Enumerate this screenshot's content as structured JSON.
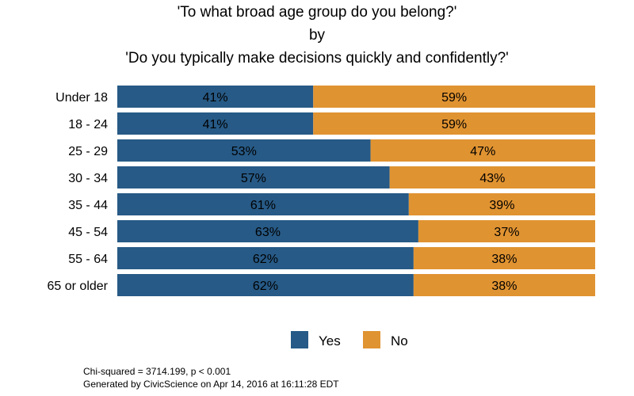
{
  "chart_data": {
    "type": "bar",
    "stacked": true,
    "orientation": "horizontal",
    "title_lines": [
      "'To what broad age group do you belong?'",
      "by",
      "'Do you typically make decisions quickly and confidently?'"
    ],
    "categories": [
      "Under 18",
      "18 - 24",
      "25 - 29",
      "30 - 34",
      "35 - 44",
      "45 - 54",
      "55 - 64",
      "65 or older"
    ],
    "series": [
      {
        "name": "Yes",
        "color": "#275a86",
        "values": [
          41,
          41,
          53,
          57,
          61,
          63,
          62,
          62
        ]
      },
      {
        "name": "No",
        "color": "#e09331",
        "values": [
          59,
          59,
          47,
          43,
          39,
          37,
          38,
          38
        ]
      }
    ],
    "value_suffix": "%",
    "xlim": [
      0,
      100
    ],
    "legend_position": "bottom",
    "grid": false
  },
  "footer": {
    "stats": "Chi-squared = 3714.199, p < 0.001",
    "generated": "Generated by CivicScience on Apr 14, 2016 at 16:11:28 EDT"
  }
}
